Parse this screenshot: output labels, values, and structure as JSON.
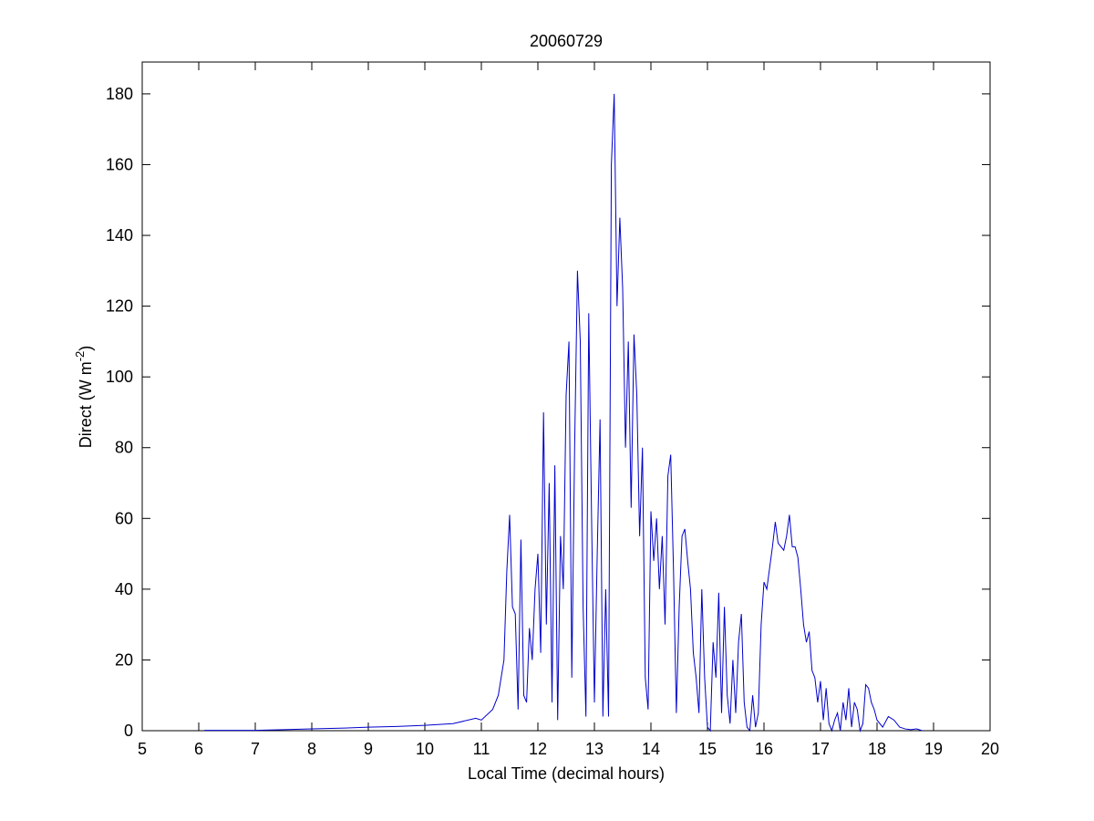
{
  "chart_data": {
    "type": "line",
    "title": "20060729",
    "xlabel": "Local Time (decimal hours)",
    "ylabel_parts": [
      "Direct (W m",
      "-2",
      ")"
    ],
    "xlim": [
      5,
      20
    ],
    "xticks": [
      5,
      6,
      7,
      8,
      9,
      10,
      11,
      12,
      13,
      14,
      15,
      16,
      17,
      18,
      19,
      20
    ],
    "ylim": [
      0,
      189
    ],
    "yticks": [
      0,
      20,
      40,
      60,
      80,
      100,
      120,
      140,
      160,
      180
    ],
    "color": "#0000cc",
    "x": [
      6.1,
      7,
      7.5,
      8,
      8.5,
      9,
      9.5,
      10,
      10.5,
      10.9,
      11.0,
      11.2,
      11.3,
      11.4,
      11.45,
      11.5,
      11.55,
      11.6,
      11.65,
      11.7,
      11.75,
      11.8,
      11.85,
      11.9,
      11.95,
      12.0,
      12.05,
      12.1,
      12.15,
      12.2,
      12.25,
      12.3,
      12.35,
      12.4,
      12.45,
      12.5,
      12.55,
      12.6,
      12.65,
      12.7,
      12.75,
      12.8,
      12.85,
      12.9,
      12.95,
      13.0,
      13.05,
      13.1,
      13.15,
      13.2,
      13.25,
      13.3,
      13.35,
      13.4,
      13.45,
      13.5,
      13.55,
      13.6,
      13.65,
      13.7,
      13.75,
      13.8,
      13.85,
      13.9,
      13.95,
      14.0,
      14.05,
      14.1,
      14.15,
      14.2,
      14.25,
      14.3,
      14.35,
      14.4,
      14.45,
      14.5,
      14.55,
      14.6,
      14.65,
      14.7,
      14.75,
      14.8,
      14.85,
      14.9,
      14.95,
      15.0,
      15.05,
      15.1,
      15.15,
      15.2,
      15.25,
      15.3,
      15.35,
      15.4,
      15.45,
      15.5,
      15.55,
      15.6,
      15.65,
      15.7,
      15.75,
      15.8,
      15.85,
      15.9,
      15.95,
      16.0,
      16.05,
      16.1,
      16.15,
      16.2,
      16.25,
      16.3,
      16.35,
      16.4,
      16.45,
      16.5,
      16.55,
      16.6,
      16.65,
      16.7,
      16.75,
      16.8,
      16.85,
      16.9,
      16.95,
      17.0,
      17.05,
      17.1,
      17.15,
      17.2,
      17.25,
      17.3,
      17.35,
      17.4,
      17.45,
      17.5,
      17.55,
      17.6,
      17.65,
      17.7,
      17.75,
      17.8,
      17.85,
      17.9,
      17.95,
      18.0,
      18.1,
      18.2,
      18.3,
      18.4,
      18.5,
      18.6,
      18.7,
      18.8
    ],
    "values": [
      0.1,
      0.1,
      0.3,
      0.5,
      0.7,
      1,
      1.2,
      1.5,
      2,
      3.5,
      3,
      6,
      10,
      20,
      45,
      61,
      35,
      33,
      6,
      54,
      10,
      8,
      29,
      20,
      40,
      50,
      22,
      90,
      30,
      70,
      8,
      75,
      3,
      55,
      40,
      95,
      110,
      15,
      80,
      130,
      110,
      35,
      4,
      118,
      60,
      8,
      50,
      88,
      4,
      40,
      4,
      160,
      180,
      120,
      145,
      125,
      80,
      110,
      63,
      112,
      95,
      55,
      80,
      15,
      6,
      62,
      48,
      60,
      40,
      55,
      30,
      72,
      78,
      45,
      5,
      35,
      55,
      57,
      48,
      40,
      22,
      15,
      5,
      40,
      15,
      1,
      0,
      25,
      15,
      39,
      5,
      35,
      10,
      2,
      20,
      5,
      25,
      33,
      8,
      1,
      0,
      10,
      1,
      5,
      30,
      42,
      40,
      46,
      52,
      59,
      53,
      52,
      51,
      55,
      61,
      52,
      52,
      49,
      40,
      30,
      25,
      28,
      17,
      15,
      8,
      14,
      3,
      12,
      2,
      0,
      3,
      5,
      0,
      8,
      3,
      12,
      1,
      8,
      6,
      0,
      2,
      13,
      12,
      8,
      6,
      3,
      1,
      4,
      3,
      1,
      0.5,
      0.3,
      0.5,
      0
    ]
  }
}
